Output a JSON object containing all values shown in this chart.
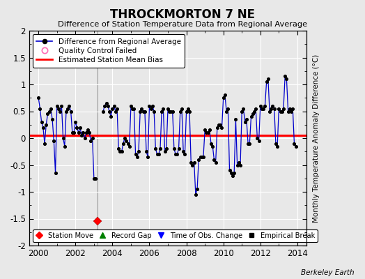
{
  "title": "THROCKMORTON 7 NE",
  "subtitle": "Difference of Station Temperature Data from Regional Average",
  "ylabel": "Monthly Temperature Anomaly Difference (°C)",
  "xlim": [
    1999.5,
    2014.5
  ],
  "ylim": [
    -2,
    2
  ],
  "yticks": [
    -2,
    -1.5,
    -1,
    -0.5,
    0,
    0.5,
    1,
    1.5,
    2
  ],
  "xticks": [
    2000,
    2002,
    2004,
    2006,
    2008,
    2010,
    2012,
    2014
  ],
  "bias_value": 0.05,
  "station_move_x": 2003.2,
  "station_move_y": -1.55,
  "gap_x": 2003.2,
  "background_color": "#e8e8e8",
  "line_color": "#0000cc",
  "bias_color": "#ff0000",
  "watermark": "Berkeley Earth",
  "series_x": [
    2000.0,
    2000.083,
    2000.167,
    2000.25,
    2000.333,
    2000.417,
    2000.5,
    2000.583,
    2000.667,
    2000.75,
    2000.833,
    2000.917,
    2001.0,
    2001.083,
    2001.167,
    2001.25,
    2001.333,
    2001.417,
    2001.5,
    2001.583,
    2001.667,
    2001.75,
    2001.833,
    2001.917,
    2002.0,
    2002.083,
    2002.167,
    2002.25,
    2002.333,
    2002.417,
    2002.5,
    2002.583,
    2002.667,
    2002.75,
    2002.833,
    2002.917,
    2003.0,
    2003.083,
    2003.5,
    2003.583,
    2003.667,
    2003.75,
    2003.833,
    2003.917,
    2004.0,
    2004.083,
    2004.167,
    2004.25,
    2004.333,
    2004.417,
    2004.5,
    2004.583,
    2004.667,
    2004.75,
    2004.833,
    2004.917,
    2005.0,
    2005.083,
    2005.167,
    2005.25,
    2005.333,
    2005.417,
    2005.5,
    2005.583,
    2005.667,
    2005.75,
    2005.833,
    2005.917,
    2006.0,
    2006.083,
    2006.167,
    2006.25,
    2006.333,
    2006.417,
    2006.5,
    2006.583,
    2006.667,
    2006.75,
    2006.833,
    2006.917,
    2007.0,
    2007.083,
    2007.167,
    2007.25,
    2007.333,
    2007.417,
    2007.5,
    2007.583,
    2007.667,
    2007.75,
    2007.833,
    2007.917,
    2008.0,
    2008.083,
    2008.167,
    2008.25,
    2008.333,
    2008.417,
    2008.5,
    2008.583,
    2008.667,
    2008.75,
    2008.833,
    2008.917,
    2009.0,
    2009.083,
    2009.167,
    2009.25,
    2009.333,
    2009.417,
    2009.5,
    2009.583,
    2009.667,
    2009.75,
    2009.833,
    2009.917,
    2010.0,
    2010.083,
    2010.167,
    2010.25,
    2010.333,
    2010.417,
    2010.5,
    2010.583,
    2010.667,
    2010.75,
    2010.833,
    2010.917,
    2011.0,
    2011.083,
    2011.167,
    2011.25,
    2011.333,
    2011.417,
    2011.5,
    2011.583,
    2011.667,
    2011.75,
    2011.833,
    2011.917,
    2012.0,
    2012.083,
    2012.167,
    2012.25,
    2012.333,
    2012.417,
    2012.5,
    2012.583,
    2012.667,
    2012.75,
    2012.833,
    2012.917,
    2013.0,
    2013.083,
    2013.167,
    2013.25,
    2013.333,
    2013.417,
    2013.5,
    2013.583,
    2013.667,
    2013.75,
    2013.833,
    2013.917
  ],
  "series_y": [
    0.75,
    0.55,
    0.3,
    0.2,
    -0.1,
    0.25,
    0.45,
    0.5,
    0.55,
    0.35,
    -0.05,
    -0.65,
    0.6,
    0.55,
    0.5,
    0.6,
    0.0,
    -0.15,
    0.5,
    0.55,
    0.6,
    0.5,
    0.1,
    0.1,
    0.3,
    0.2,
    0.1,
    0.2,
    0.05,
    0.1,
    0.0,
    0.1,
    0.15,
    0.1,
    -0.05,
    0.0,
    -0.75,
    -0.75,
    0.5,
    0.6,
    0.65,
    0.6,
    0.5,
    0.4,
    0.55,
    0.6,
    0.5,
    0.55,
    -0.2,
    -0.25,
    -0.25,
    -0.1,
    0.0,
    -0.05,
    -0.1,
    -0.15,
    0.6,
    0.55,
    0.55,
    -0.3,
    -0.35,
    -0.25,
    0.5,
    0.55,
    0.5,
    0.5,
    -0.25,
    -0.35,
    0.6,
    0.55,
    0.6,
    0.5,
    -0.2,
    -0.3,
    -0.3,
    -0.2,
    0.5,
    0.55,
    -0.25,
    -0.2,
    0.55,
    0.5,
    0.5,
    0.5,
    -0.2,
    -0.3,
    -0.3,
    -0.2,
    0.5,
    0.55,
    -0.25,
    -0.3,
    0.5,
    0.55,
    0.5,
    -0.45,
    -0.5,
    -0.45,
    -1.05,
    -0.95,
    -0.4,
    -0.35,
    -0.35,
    -0.35,
    0.15,
    0.1,
    0.1,
    0.15,
    -0.1,
    -0.15,
    -0.4,
    -0.45,
    0.2,
    0.25,
    0.25,
    0.2,
    0.75,
    0.8,
    0.5,
    0.55,
    -0.6,
    -0.65,
    -0.7,
    -0.65,
    0.35,
    -0.5,
    -0.45,
    -0.5,
    0.5,
    0.55,
    0.3,
    0.35,
    -0.1,
    -0.1,
    0.4,
    0.45,
    0.5,
    0.55,
    0.0,
    -0.05,
    0.6,
    0.55,
    0.55,
    0.6,
    1.05,
    1.1,
    0.5,
    0.55,
    0.6,
    0.55,
    -0.1,
    -0.15,
    0.55,
    0.5,
    0.5,
    0.55,
    1.15,
    1.1,
    0.5,
    0.55,
    0.5,
    0.55,
    -0.1,
    -0.15
  ]
}
